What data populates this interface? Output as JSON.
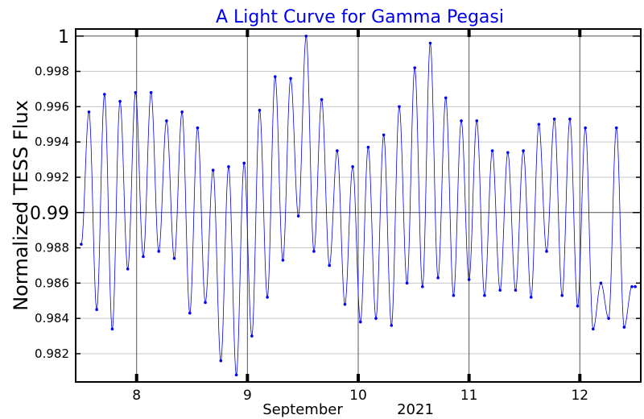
{
  "chart_data": {
    "type": "scatter",
    "title": "A Light Curve for Gamma Pegasi",
    "ylabel": "Normalized TESS Flux",
    "xlabel_month": "September",
    "xlabel_year": "2021",
    "xlim": [
      7.45,
      12.55
    ],
    "ylim": [
      0.9804,
      1.0004
    ],
    "x_ticks": [
      8,
      9,
      10,
      11,
      12
    ],
    "x_tick_labels": [
      "8",
      "9",
      "10",
      "11",
      "12"
    ],
    "y_ticks": [
      0.982,
      0.984,
      0.986,
      0.988,
      0.99,
      0.992,
      0.994,
      0.996,
      0.998,
      1
    ],
    "y_tick_labels": [
      "0.982",
      "0.984",
      "0.986",
      "0.988",
      "0.99",
      "0.992",
      "0.994",
      "0.996",
      "0.998",
      "1"
    ],
    "y_major_ticks": [
      0.99,
      1
    ],
    "grid": true,
    "series_color": "#0000ee",
    "series": [
      {
        "x": [
          7.5,
          7.57,
          7.64,
          7.71,
          7.78,
          7.85,
          7.92,
          7.99,
          8.06,
          8.13,
          8.2,
          8.27,
          8.34,
          8.41,
          8.48,
          8.55,
          8.62,
          8.69,
          8.76,
          8.83,
          8.9,
          8.97,
          9.04,
          9.11,
          9.18,
          9.25,
          9.32,
          9.39,
          9.46,
          9.53,
          9.6,
          9.67,
          9.74,
          9.81,
          9.88,
          9.95,
          10.02,
          10.09,
          10.16,
          10.23,
          10.3,
          10.37,
          10.44,
          10.51,
          10.58,
          10.65,
          10.72,
          10.79,
          10.86,
          10.93,
          11.0,
          11.07,
          11.14,
          11.21,
          11.28,
          11.35,
          11.42,
          11.49,
          11.56,
          11.63,
          11.7,
          11.77,
          11.84,
          11.91,
          11.98,
          12.05,
          12.12,
          12.19,
          12.26,
          12.33,
          12.4,
          12.47,
          12.5
        ],
        "y": [
          0.9882,
          0.9957,
          0.9845,
          0.9967,
          0.9834,
          0.9963,
          0.9868,
          0.9968,
          0.9875,
          0.9968,
          0.9878,
          0.9952,
          0.9874,
          0.9957,
          0.9843,
          0.9948,
          0.9849,
          0.9924,
          0.9816,
          0.9926,
          0.9808,
          0.9928,
          0.983,
          0.9958,
          0.9852,
          0.9977,
          0.9873,
          0.9976,
          0.9898,
          1.0,
          0.9878,
          0.9964,
          0.987,
          0.9935,
          0.9848,
          0.9926,
          0.9838,
          0.9937,
          0.984,
          0.9944,
          0.9836,
          0.996,
          0.986,
          0.9982,
          0.9858,
          0.9996,
          0.9863,
          0.9965,
          0.9853,
          0.9952,
          0.9862,
          0.9952,
          0.9853,
          0.9935,
          0.9856,
          0.9934,
          0.9856,
          0.9935,
          0.9852,
          0.995,
          0.9878,
          0.9953,
          0.9853,
          0.9953,
          0.9847,
          0.9948,
          0.9834,
          0.986,
          0.984,
          0.9948,
          0.9835,
          0.9858,
          0.9858
        ]
      }
    ]
  }
}
